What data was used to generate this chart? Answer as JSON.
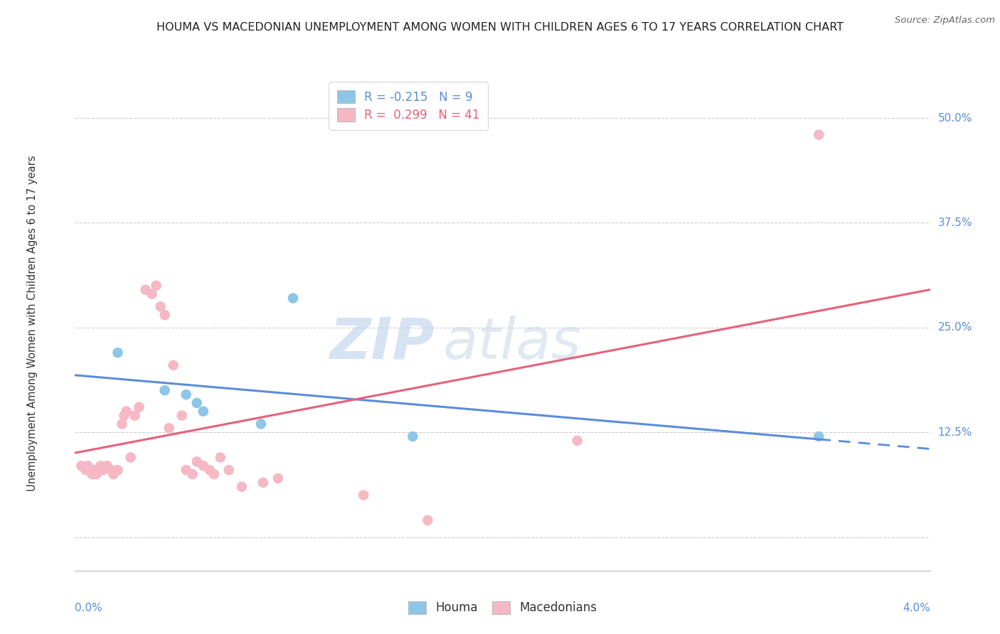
{
  "title": "HOUMA VS MACEDONIAN UNEMPLOYMENT AMONG WOMEN WITH CHILDREN AGES 6 TO 17 YEARS CORRELATION CHART",
  "source": "Source: ZipAtlas.com",
  "ylabel": "Unemployment Among Women with Children Ages 6 to 17 years",
  "xmin": 0.0,
  "xmax": 4.0,
  "ymin": -4.0,
  "ymax": 55.0,
  "yticks": [
    0.0,
    12.5,
    25.0,
    37.5,
    50.0
  ],
  "houma_color": "#8ec6e8",
  "macedonian_color": "#f5b8c4",
  "houma_R": -0.215,
  "houma_N": 9,
  "macedonian_R": 0.299,
  "macedonian_N": 41,
  "houma_line_color": "#5b8dd9",
  "macedonian_line_color": "#e8607a",
  "watermark_zip": "ZIP",
  "watermark_atlas": "atlas",
  "houma_points_x": [
    0.2,
    0.42,
    0.52,
    0.57,
    0.6,
    0.87,
    1.02,
    1.58,
    3.48
  ],
  "houma_points_y": [
    22.0,
    17.5,
    17.0,
    16.0,
    15.0,
    13.5,
    28.5,
    12.0,
    12.0
  ],
  "macedonian_points_x": [
    0.03,
    0.05,
    0.06,
    0.08,
    0.09,
    0.1,
    0.12,
    0.13,
    0.15,
    0.17,
    0.18,
    0.2,
    0.22,
    0.23,
    0.24,
    0.26,
    0.28,
    0.3,
    0.33,
    0.36,
    0.38,
    0.4,
    0.42,
    0.44,
    0.46,
    0.5,
    0.52,
    0.55,
    0.57,
    0.6,
    0.63,
    0.65,
    0.68,
    0.72,
    0.78,
    0.88,
    0.95,
    1.35,
    1.65,
    2.35,
    3.48
  ],
  "macedonian_points_y": [
    8.5,
    8.0,
    8.5,
    7.5,
    8.0,
    7.5,
    8.5,
    8.0,
    8.5,
    8.0,
    7.5,
    8.0,
    13.5,
    14.5,
    15.0,
    9.5,
    14.5,
    15.5,
    29.5,
    29.0,
    30.0,
    27.5,
    26.5,
    13.0,
    20.5,
    14.5,
    8.0,
    7.5,
    9.0,
    8.5,
    8.0,
    7.5,
    9.5,
    8.0,
    6.0,
    6.5,
    7.0,
    5.0,
    2.0,
    11.5,
    48.0
  ]
}
